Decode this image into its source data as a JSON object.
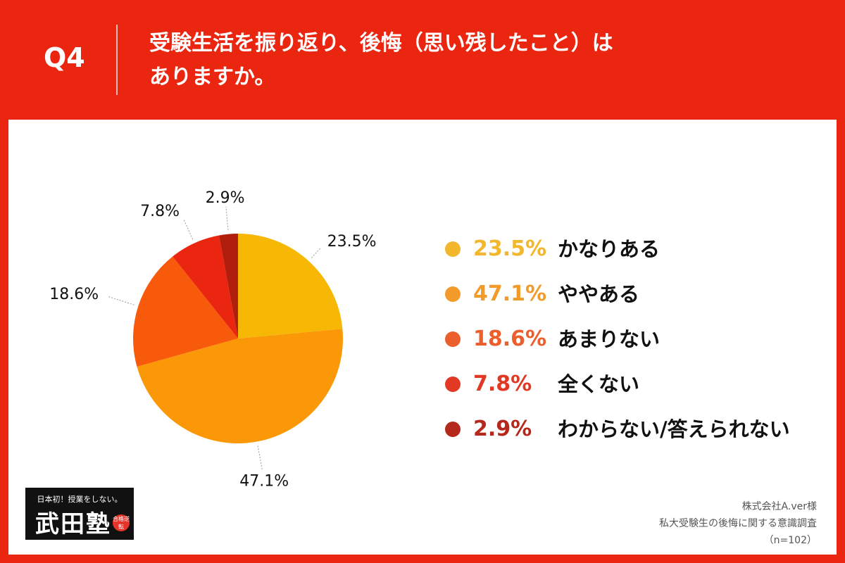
{
  "header": {
    "q_label": "Q4",
    "question_line1": "受験生活を振り返り、後悔（思い残したこと）は",
    "question_line2": "ありますか。"
  },
  "chart_data": {
    "type": "pie",
    "categories": [
      "かなりある",
      "ややある",
      "あまりない",
      "全くない",
      "わからない/答えられない"
    ],
    "values": [
      23.5,
      47.1,
      18.6,
      7.8,
      2.9
    ],
    "value_labels": [
      "23.5%",
      "47.1%",
      "18.6%",
      "7.8%",
      "2.9%"
    ],
    "colors": [
      "#f6b705",
      "#fb9808",
      "#f85a0b",
      "#ea2510",
      "#b21e0d"
    ],
    "legend_text_colors": [
      "#f3b72d",
      "#f29b2b",
      "#ec5f2d",
      "#e13924",
      "#b4291b"
    ],
    "legend_placement": "right"
  },
  "legend": [
    {
      "pct": "23.5%",
      "label": "かなりある"
    },
    {
      "pct": "47.1%",
      "label": "ややある"
    },
    {
      "pct": "18.6%",
      "label": "あまりない"
    },
    {
      "pct": "7.8%",
      "label": "全くない"
    },
    {
      "pct": "2.9%",
      "label": "わからない/答えられない"
    }
  ],
  "logo": {
    "tagline": "日本初！授業をしない。",
    "name": "武田塾",
    "badge": "合格逆転"
  },
  "source": {
    "company": "株式会社A.ver様",
    "survey": "私大受験生の後悔に関する意識調査",
    "sample": "（n=102）"
  }
}
